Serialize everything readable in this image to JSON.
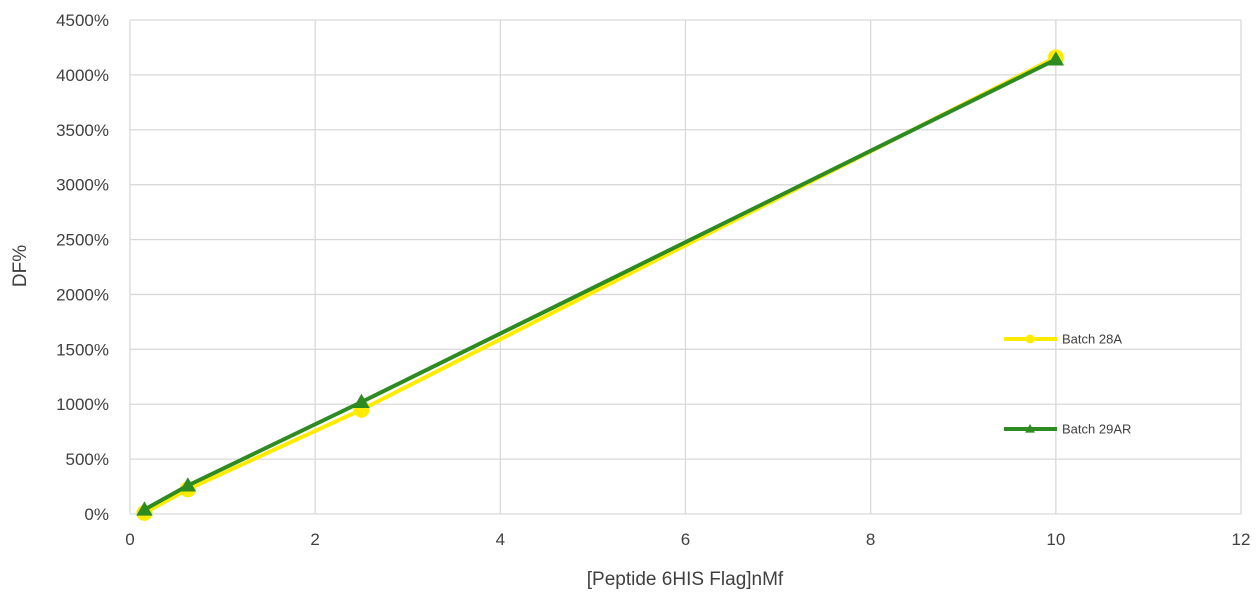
{
  "chart_data": {
    "type": "scatter",
    "title": "",
    "xlabel": "[Peptide 6HIS Flag]nMf",
    "ylabel": "DF%",
    "xlim": [
      0,
      12
    ],
    "ylim": [
      0,
      4500
    ],
    "x_ticks": [
      "0",
      "2",
      "4",
      "6",
      "8",
      "10",
      "12"
    ],
    "y_ticks": [
      "0%",
      "500%",
      "1000%",
      "1500%",
      "2000%",
      "2500%",
      "3000%",
      "3500%",
      "4000%",
      "4500%"
    ],
    "grid": true,
    "legend_position": "right",
    "series": [
      {
        "name": "Batch 28A",
        "color": "#ffeb00",
        "marker": "circle",
        "x": [
          0.156,
          0.625,
          2.5,
          10
        ],
        "y": [
          10,
          225,
          950,
          4160
        ]
      },
      {
        "name": "Batch 29AR",
        "color": "#2e8b22",
        "marker": "triangle",
        "x": [
          0.156,
          0.625,
          2.5,
          10
        ],
        "y": [
          40,
          260,
          1020,
          4140
        ]
      }
    ]
  }
}
